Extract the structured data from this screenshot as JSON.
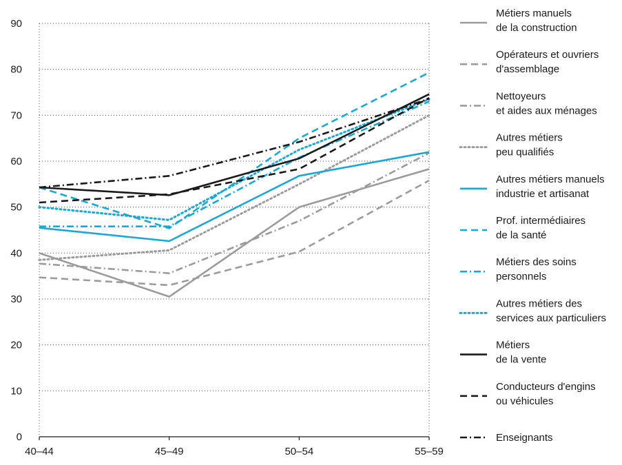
{
  "chart_data": {
    "type": "line",
    "categories": [
      "40–44",
      "45–49",
      "50–54",
      "55–59"
    ],
    "ylim": [
      0,
      90
    ],
    "yticks": [
      0,
      10,
      20,
      30,
      40,
      50,
      60,
      70,
      80,
      90
    ],
    "grid": "horizontal-dotted",
    "legend_position": "right",
    "series": [
      {
        "name": "Métiers manuels\nde la construction",
        "values": [
          40,
          30.5,
          50,
          58.3
        ],
        "color": "#9b9b9b",
        "style": "solid"
      },
      {
        "name": "Opérateurs et ouvriers\nd'assemblage",
        "values": [
          34.7,
          33,
          40.3,
          55.8
        ],
        "color": "#9b9b9b",
        "style": "dash"
      },
      {
        "name": "Nettoyeurs\net aides aux ménages",
        "values": [
          37.7,
          35.6,
          47,
          61.8
        ],
        "color": "#9b9b9b",
        "style": "dashdot"
      },
      {
        "name": "Autres métiers\npeu qualifiés",
        "values": [
          38.5,
          40.6,
          55,
          70
        ],
        "color": "#9b9b9b",
        "style": "dot"
      },
      {
        "name": "Autres métiers manuels\nindustrie et artisanat",
        "values": [
          45.5,
          42.6,
          56.8,
          62
        ],
        "color": "#1aa7d6",
        "style": "solid"
      },
      {
        "name": "Prof. intermédiaires\nde la santé",
        "values": [
          54.3,
          45.4,
          65,
          79.3
        ],
        "color": "#1aa7d6",
        "style": "dash"
      },
      {
        "name": "Métiers des soins\npersonnels",
        "values": [
          45.8,
          45.8,
          60.8,
          73
        ],
        "color": "#1aa7d6",
        "style": "dashdot"
      },
      {
        "name": "Autres métiers des\nservices aux particuliers",
        "values": [
          50,
          47.2,
          62.5,
          73.5
        ],
        "color": "#1aa7d6",
        "style": "dot"
      },
      {
        "name": "Métiers\nde la vente",
        "values": [
          54.3,
          52.6,
          60.6,
          74.6
        ],
        "color": "#1a1a1a",
        "style": "solid"
      },
      {
        "name": "Conducteurs d'engins\nou véhicules",
        "values": [
          51,
          52.8,
          58.3,
          73.8
        ],
        "color": "#1a1a1a",
        "style": "dash"
      },
      {
        "name": "Enseignants",
        "values": [
          54.3,
          56.8,
          64.2,
          73.6
        ],
        "color": "#1a1a1a",
        "style": "dashdot"
      }
    ]
  }
}
